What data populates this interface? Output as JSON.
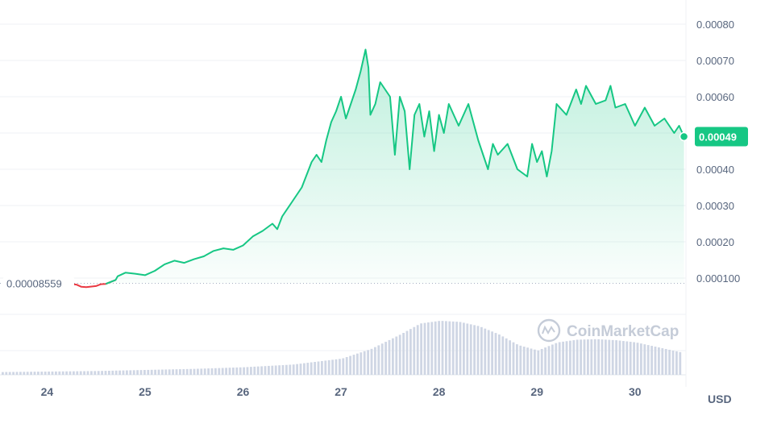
{
  "chart_data": {
    "type": "area",
    "watermark": "CoinMarketCap",
    "currency_label": "USD",
    "x_tick_labels": [
      "24",
      "25",
      "26",
      "27",
      "28",
      "29",
      "30"
    ],
    "x_ticks_day": [
      24,
      25,
      26,
      27,
      28,
      29,
      30
    ],
    "x_range_day": [
      23.52,
      30.52
    ],
    "y_tick_labels": [
      "0.00080",
      "0.00070",
      "0.00060",
      "0.00050",
      "0.00040",
      "0.00030",
      "0.00020",
      "0.000100"
    ],
    "y_ticks": [
      0.0008,
      0.0007,
      0.0006,
      0.0005,
      0.0004,
      0.0003,
      0.0002,
      0.0001
    ],
    "ylim": [
      0.0,
      0.00085
    ],
    "reference_price": 8.559e-05,
    "reference_label": "0.00008559",
    "current_price": 0.00049,
    "current_label": "0.00049",
    "up_color": "#16c784",
    "down_color": "#ea3943",
    "volume_color": "#cfd6e4",
    "price_series": {
      "day": [
        23.9,
        24.0,
        24.05,
        24.1,
        24.2,
        24.3,
        24.35,
        24.4,
        24.5,
        24.55,
        24.6,
        24.7,
        24.72,
        24.8,
        24.9,
        25.0,
        25.1,
        25.2,
        25.3,
        25.4,
        25.5,
        25.6,
        25.7,
        25.8,
        25.9,
        26.0,
        26.1,
        26.2,
        26.3,
        26.35,
        26.4,
        26.5,
        26.6,
        26.7,
        26.75,
        26.8,
        26.85,
        26.9,
        26.95,
        27.0,
        27.05,
        27.1,
        27.15,
        27.2,
        27.25,
        27.28,
        27.3,
        27.35,
        27.4,
        27.45,
        27.5,
        27.55,
        27.6,
        27.65,
        27.7,
        27.75,
        27.8,
        27.85,
        27.9,
        27.95,
        28.0,
        28.05,
        28.1,
        28.15,
        28.2,
        28.3,
        28.4,
        28.5,
        28.55,
        28.6,
        28.7,
        28.8,
        28.9,
        28.95,
        29.0,
        29.05,
        29.1,
        29.15,
        29.2,
        29.3,
        29.4,
        29.45,
        29.5,
        29.6,
        29.7,
        29.75,
        29.8,
        29.9,
        30.0,
        30.1,
        30.2,
        30.3,
        30.4,
        30.45,
        30.5
      ],
      "price": [
        7.8e-05,
        7.2e-05,
        7.5e-05,
        8e-05,
        8.5e-05,
        8.2e-05,
        7.6e-05,
        7.5e-05,
        7.8e-05,
        8.3e-05,
        8.4e-05,
        9.5e-05,
        0.000105,
        0.000115,
        0.000112,
        0.000108,
        0.00012,
        0.000138,
        0.000148,
        0.000142,
        0.000152,
        0.00016,
        0.000175,
        0.000182,
        0.000178,
        0.00019,
        0.000215,
        0.00023,
        0.00025,
        0.000235,
        0.00027,
        0.00031,
        0.00035,
        0.00042,
        0.00044,
        0.00042,
        0.00048,
        0.00053,
        0.00056,
        0.0006,
        0.00054,
        0.00058,
        0.00062,
        0.00067,
        0.00073,
        0.00068,
        0.00055,
        0.00058,
        0.00064,
        0.00062,
        0.0006,
        0.00044,
        0.0006,
        0.00056,
        0.0004,
        0.00055,
        0.00058,
        0.00049,
        0.00056,
        0.00045,
        0.00055,
        0.0005,
        0.00058,
        0.00055,
        0.00052,
        0.00058,
        0.00048,
        0.0004,
        0.00047,
        0.00044,
        0.00047,
        0.0004,
        0.00038,
        0.00047,
        0.00042,
        0.00045,
        0.00038,
        0.00045,
        0.00058,
        0.00055,
        0.00062,
        0.00058,
        0.00063,
        0.00058,
        0.00059,
        0.00063,
        0.00057,
        0.00058,
        0.00052,
        0.00057,
        0.00052,
        0.00054,
        0.0005,
        0.00052,
        0.00049
      ]
    },
    "volume_series": {
      "day": [
        23.5,
        24.0,
        24.5,
        25.0,
        25.5,
        26.0,
        26.5,
        27.0,
        27.3,
        27.6,
        27.8,
        28.0,
        28.2,
        28.4,
        28.6,
        28.8,
        29.0,
        29.2,
        29.4,
        29.6,
        29.8,
        30.0,
        30.2,
        30.5
      ],
      "level": [
        0.05,
        0.06,
        0.07,
        0.09,
        0.11,
        0.14,
        0.19,
        0.3,
        0.48,
        0.75,
        0.95,
        1.0,
        0.98,
        0.9,
        0.75,
        0.55,
        0.45,
        0.6,
        0.65,
        0.66,
        0.64,
        0.6,
        0.52,
        0.4
      ]
    }
  }
}
